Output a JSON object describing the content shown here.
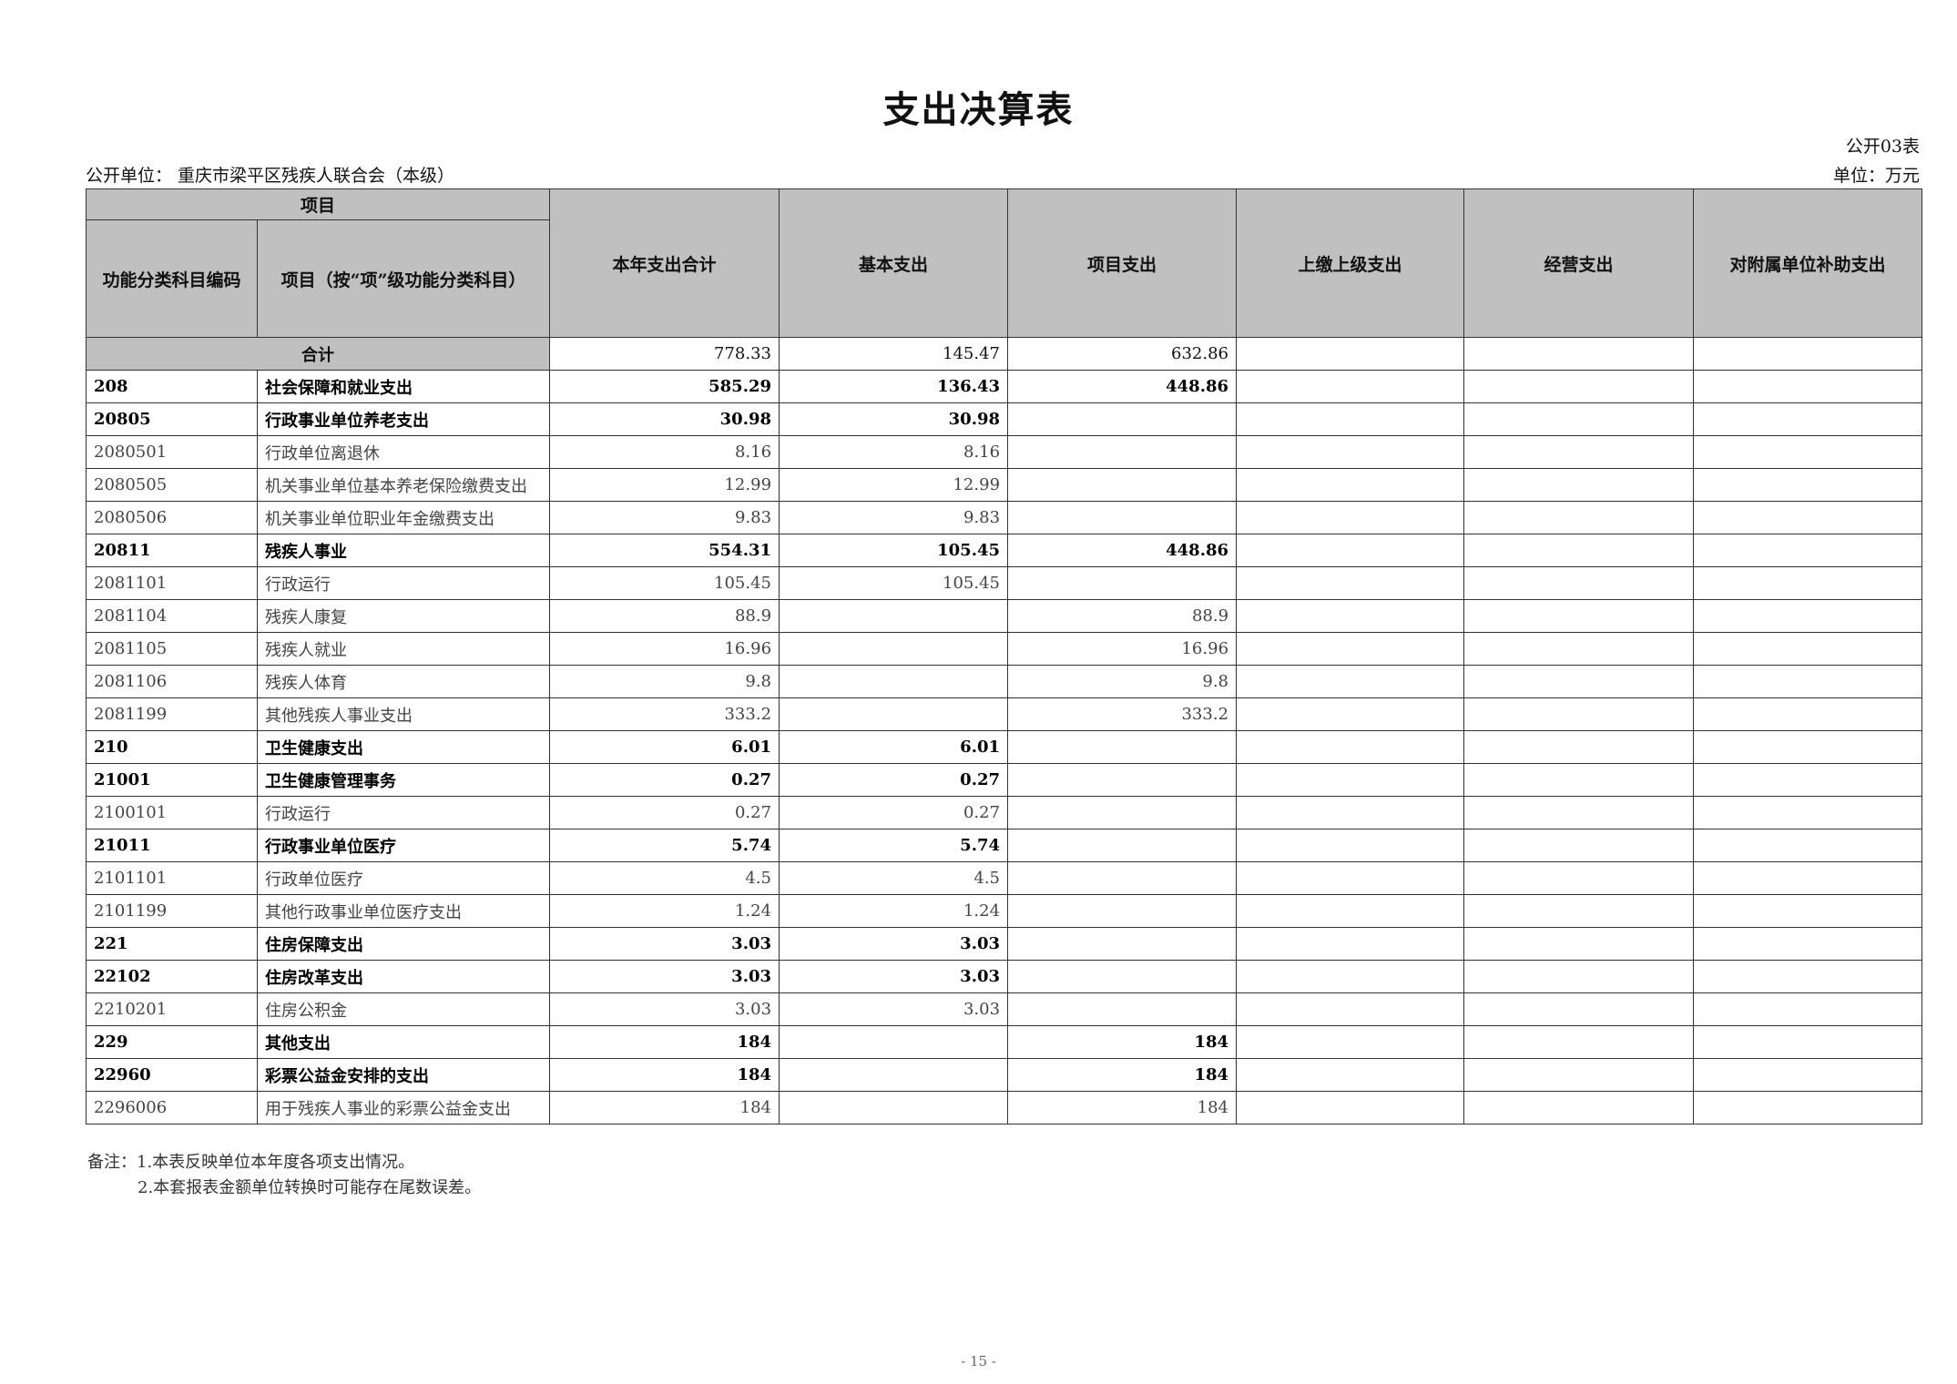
{
  "title": "支出决算表",
  "form_no": "公开03表",
  "unit_label": "公开单位：  重庆市梁平区残疾人联合会（本级）",
  "currency_unit": "单位：万元",
  "headers": {
    "item": "项目",
    "code": "功能分类科目编码",
    "name": "项目（按“项”级功能分类科目）",
    "total": "本年支出合计",
    "basic": "基本支出",
    "project": "项目支出",
    "upper": "上缴上级支出",
    "business": "经营支出",
    "subsidy": "对附属单位补助支出"
  },
  "total_row": {
    "label": "合计",
    "total": "778.33",
    "basic": "145.47",
    "project": "632.86"
  },
  "rows": [
    {
      "code": "208",
      "name": "社会保障和就业支出",
      "total": "585.29",
      "basic": "136.43",
      "project": "448.86",
      "bold": true
    },
    {
      "code": "20805",
      "name": "行政事业单位养老支出",
      "total": "30.98",
      "basic": "30.98",
      "project": "",
      "bold": true
    },
    {
      "code": "2080501",
      "name": "行政单位离退休",
      "total": "8.16",
      "basic": "8.16",
      "project": "",
      "bold": false
    },
    {
      "code": "2080505",
      "name": "机关事业单位基本养老保险缴费支出",
      "total": "12.99",
      "basic": "12.99",
      "project": "",
      "bold": false
    },
    {
      "code": "2080506",
      "name": "机关事业单位职业年金缴费支出",
      "total": "9.83",
      "basic": "9.83",
      "project": "",
      "bold": false
    },
    {
      "code": "20811",
      "name": "残疾人事业",
      "total": "554.31",
      "basic": "105.45",
      "project": "448.86",
      "bold": true
    },
    {
      "code": "2081101",
      "name": "行政运行",
      "total": "105.45",
      "basic": "105.45",
      "project": "",
      "bold": false
    },
    {
      "code": "2081104",
      "name": "残疾人康复",
      "total": "88.9",
      "basic": "",
      "project": "88.9",
      "bold": false
    },
    {
      "code": "2081105",
      "name": "残疾人就业",
      "total": "16.96",
      "basic": "",
      "project": "16.96",
      "bold": false
    },
    {
      "code": "2081106",
      "name": "残疾人体育",
      "total": "9.8",
      "basic": "",
      "project": "9.8",
      "bold": false
    },
    {
      "code": "2081199",
      "name": "其他残疾人事业支出",
      "total": "333.2",
      "basic": "",
      "project": "333.2",
      "bold": false
    },
    {
      "code": "210",
      "name": "卫生健康支出",
      "total": "6.01",
      "basic": "6.01",
      "project": "",
      "bold": true
    },
    {
      "code": "21001",
      "name": "卫生健康管理事务",
      "total": "0.27",
      "basic": "0.27",
      "project": "",
      "bold": true
    },
    {
      "code": "2100101",
      "name": "行政运行",
      "total": "0.27",
      "basic": "0.27",
      "project": "",
      "bold": false
    },
    {
      "code": "21011",
      "name": "行政事业单位医疗",
      "total": "5.74",
      "basic": "5.74",
      "project": "",
      "bold": true
    },
    {
      "code": "2101101",
      "name": "行政单位医疗",
      "total": "4.5",
      "basic": "4.5",
      "project": "",
      "bold": false
    },
    {
      "code": "2101199",
      "name": "其他行政事业单位医疗支出",
      "total": "1.24",
      "basic": "1.24",
      "project": "",
      "bold": false
    },
    {
      "code": "221",
      "name": "住房保障支出",
      "total": "3.03",
      "basic": "3.03",
      "project": "",
      "bold": true
    },
    {
      "code": "22102",
      "name": "住房改革支出",
      "total": "3.03",
      "basic": "3.03",
      "project": "",
      "bold": true
    },
    {
      "code": "2210201",
      "name": "住房公积金",
      "total": "3.03",
      "basic": "3.03",
      "project": "",
      "bold": false
    },
    {
      "code": "229",
      "name": "其他支出",
      "total": "184",
      "basic": "",
      "project": "184",
      "bold": true
    },
    {
      "code": "22960",
      "name": "彩票公益金安排的支出",
      "total": "184",
      "basic": "",
      "project": "184",
      "bold": true
    },
    {
      "code": "2296006",
      "name": "用于残疾人事业的彩票公益金支出",
      "total": "184",
      "basic": "",
      "project": "184",
      "bold": false
    }
  ],
  "notes": [
    "备注：1.本表反映单位本年度各项支出情况。",
    "2.本套报表金额单位转换时可能存在尾数误差。"
  ],
  "page_number": "- 15 -"
}
